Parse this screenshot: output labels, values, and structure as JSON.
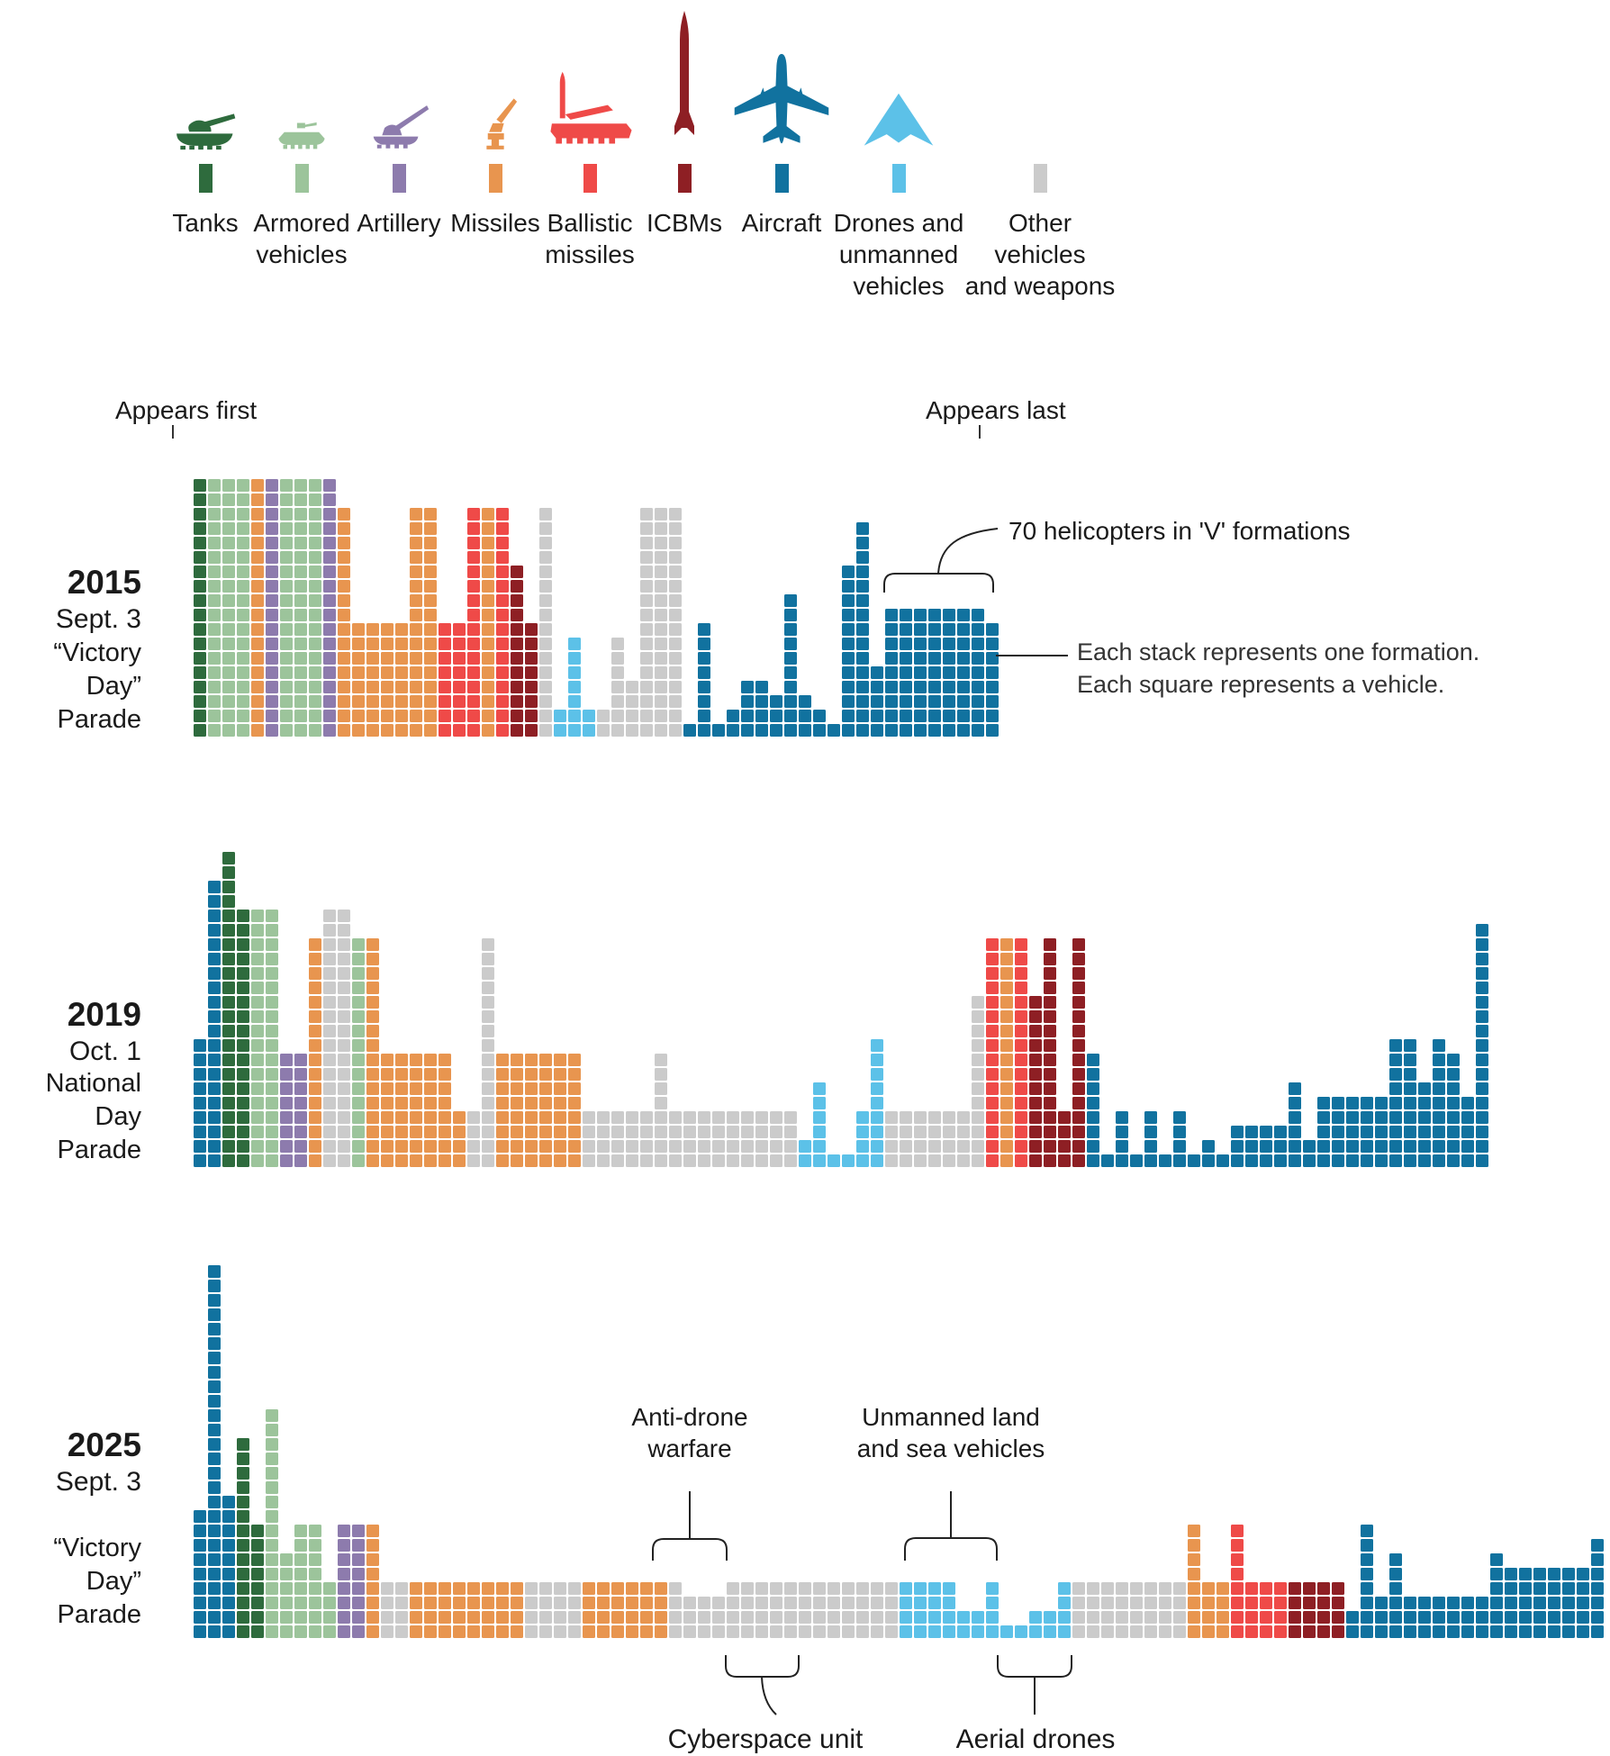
{
  "colors": {
    "dg": "#2e6b3d",
    "lg": "#9cc49b",
    "pu": "#8d7bad",
    "or": "#e8954f",
    "re": "#ef4a48",
    "dr": "#8e1f24",
    "bl": "#11729f",
    "lb": "#5cc1e8",
    "gy": "#cbcbcb"
  },
  "legend": {
    "items": [
      {
        "label": "Tanks",
        "color_key": "dg",
        "icon": "tank-icon"
      },
      {
        "label": "Armored\nvehicles",
        "color_key": "lg",
        "icon": "armored-vehicle-icon"
      },
      {
        "label": "Artillery",
        "color_key": "pu",
        "icon": "artillery-icon"
      },
      {
        "label": "Missiles",
        "color_key": "or",
        "icon": "missile-launcher-icon"
      },
      {
        "label": "Ballistic\nmissiles",
        "color_key": "re",
        "icon": "ballistic-missile-icon"
      },
      {
        "label": "ICBMs",
        "color_key": "dr",
        "icon": "icbm-icon"
      },
      {
        "label": "Aircraft",
        "color_key": "bl",
        "icon": "aircraft-icon"
      },
      {
        "label": "Drones and\nunmanned\nvehicles",
        "color_key": "lb",
        "icon": "drone-icon"
      },
      {
        "label": "Other vehicles\nand weapons",
        "color_key": "gy",
        "icon": "square-swatch-icon"
      }
    ]
  },
  "annotations": {
    "appears_first": "Appears first",
    "appears_last": "Appears last",
    "helicopters": "70 helicopters in 'V' formations",
    "stack_note_line1": "Each stack represents one formation.",
    "stack_note_line2": "Each square represents a vehicle.",
    "anti_drone": "Anti-drone\nwarfare",
    "unmanned": "Unmanned land\nand sea vehicles",
    "cyberspace": "Cyberspace unit",
    "aerial": "Aerial drones"
  },
  "chart_data": {
    "type": "waffle",
    "unit_note": "Each stack represents one formation. Each square represents a vehicle.",
    "order_note": "Stacks ordered left to right from first to last appearance in parade",
    "parades": [
      {
        "year": "2015",
        "date": "Sept. 3",
        "event_line1": "“Victory Day”",
        "event_line2": "Parade",
        "rows": 18,
        "stacks": [
          [
            "dg",
            18
          ],
          [
            "lg",
            18
          ],
          [
            "lg",
            18
          ],
          [
            "lg",
            18
          ],
          [
            "or",
            18
          ],
          [
            "pu",
            18
          ],
          [
            "lg",
            18
          ],
          [
            "lg",
            18
          ],
          [
            "lg",
            18
          ],
          [
            "pu",
            18
          ],
          [
            "or",
            16
          ],
          [
            "or",
            8
          ],
          [
            "or",
            8
          ],
          [
            "or",
            8
          ],
          [
            "or",
            8
          ],
          [
            "or",
            16
          ],
          [
            "or",
            16
          ],
          [
            "re",
            8
          ],
          [
            "re",
            8
          ],
          [
            "re",
            16
          ],
          [
            "or",
            16
          ],
          [
            "re",
            16
          ],
          [
            "dr",
            12
          ],
          [
            "dr",
            8
          ],
          [
            "gy",
            16
          ],
          [
            "lb",
            2
          ],
          [
            "lb",
            7
          ],
          [
            "lb",
            2
          ],
          [
            "gy",
            2
          ],
          [
            "gy",
            7
          ],
          [
            "gy",
            4
          ],
          [
            "gy",
            16
          ],
          [
            "gy",
            16
          ],
          [
            "gy",
            16
          ],
          [
            "bl",
            1
          ],
          [
            "bl",
            8
          ],
          [
            "bl",
            1
          ],
          [
            "bl",
            2
          ],
          [
            "bl",
            4
          ],
          [
            "bl",
            4
          ],
          [
            "bl",
            3
          ],
          [
            "bl",
            10
          ],
          [
            "bl",
            3
          ],
          [
            "bl",
            2
          ],
          [
            "bl",
            1
          ],
          [
            "bl",
            12
          ],
          [
            "bl",
            15
          ],
          [
            "bl",
            5
          ],
          [
            "bl",
            9
          ],
          [
            "bl",
            9
          ],
          [
            "bl",
            9
          ],
          [
            "bl",
            9
          ],
          [
            "bl",
            9
          ],
          [
            "bl",
            9
          ],
          [
            "bl",
            9
          ],
          [
            "bl",
            8
          ]
        ]
      },
      {
        "year": "2019",
        "date": "Oct. 1",
        "event_line1": "National Day",
        "event_line2": "Parade",
        "rows": 22,
        "stacks": [
          [
            "bl",
            9
          ],
          [
            "bl",
            20
          ],
          [
            "dg",
            22
          ],
          [
            "dg",
            18
          ],
          [
            "lg",
            18
          ],
          [
            "lg",
            18
          ],
          [
            "pu",
            8
          ],
          [
            "pu",
            8
          ],
          [
            "or",
            16
          ],
          [
            "gy",
            18
          ],
          [
            "gy",
            18
          ],
          [
            "lg",
            16
          ],
          [
            "or",
            16
          ],
          [
            "or",
            8
          ],
          [
            "or",
            8
          ],
          [
            "or",
            8
          ],
          [
            "or",
            8
          ],
          [
            "or",
            8
          ],
          [
            "or",
            4
          ],
          [
            "gy",
            4
          ],
          [
            "gy",
            16
          ],
          [
            "or",
            8
          ],
          [
            "or",
            8
          ],
          [
            "or",
            8
          ],
          [
            "or",
            8
          ],
          [
            "or",
            8
          ],
          [
            "or",
            8
          ],
          [
            "gy",
            4
          ],
          [
            "gy",
            4
          ],
          [
            "gy",
            4
          ],
          [
            "gy",
            4
          ],
          [
            "gy",
            4
          ],
          [
            "gy",
            8
          ],
          [
            "gy",
            4
          ],
          [
            "gy",
            4
          ],
          [
            "gy",
            4
          ],
          [
            "gy",
            4
          ],
          [
            "gy",
            4
          ],
          [
            "gy",
            4
          ],
          [
            "gy",
            4
          ],
          [
            "gy",
            4
          ],
          [
            "gy",
            4
          ],
          [
            "lb",
            2
          ],
          [
            "lb",
            6
          ],
          [
            "lb",
            1
          ],
          [
            "lb",
            1
          ],
          [
            "lb",
            4
          ],
          [
            "lb",
            9
          ],
          [
            "gy",
            4
          ],
          [
            "gy",
            4
          ],
          [
            "gy",
            4
          ],
          [
            "gy",
            4
          ],
          [
            "gy",
            4
          ],
          [
            "gy",
            4
          ],
          [
            "gy",
            12
          ],
          [
            "re",
            16
          ],
          [
            "or",
            16
          ],
          [
            "re",
            16
          ],
          [
            "dr",
            12
          ],
          [
            "dr",
            16
          ],
          [
            "dr",
            4
          ],
          [
            "dr",
            16
          ],
          [
            "bl",
            8
          ],
          [
            "bl",
            1
          ],
          [
            "bl",
            4
          ],
          [
            "bl",
            1
          ],
          [
            "bl",
            4
          ],
          [
            "bl",
            1
          ],
          [
            "bl",
            4
          ],
          [
            "bl",
            1
          ],
          [
            "bl",
            2
          ],
          [
            "bl",
            1
          ],
          [
            "bl",
            3
          ],
          [
            "bl",
            3
          ],
          [
            "bl",
            3
          ],
          [
            "bl",
            3
          ],
          [
            "bl",
            6
          ],
          [
            "bl",
            2
          ],
          [
            "bl",
            5
          ],
          [
            "bl",
            5
          ],
          [
            "bl",
            5
          ],
          [
            "bl",
            5
          ],
          [
            "bl",
            5
          ],
          [
            "bl",
            9
          ],
          [
            "bl",
            9
          ],
          [
            "bl",
            6
          ],
          [
            "bl",
            9
          ],
          [
            "bl",
            8
          ],
          [
            "bl",
            5
          ],
          [
            "bl",
            17
          ]
        ]
      },
      {
        "year": "2025",
        "date": "Sept. 3",
        "event_line1": "“Victory Day”",
        "event_line2": "Parade",
        "rows": 26,
        "stacks": [
          [
            "bl",
            9
          ],
          [
            "bl",
            26
          ],
          [
            "bl",
            10
          ],
          [
            "dg",
            14
          ],
          [
            "dg",
            8
          ],
          [
            "lg",
            16
          ],
          [
            "lg",
            6
          ],
          [
            "lg",
            8
          ],
          [
            "lg",
            8
          ],
          [
            "lg",
            4
          ],
          [
            "pu",
            8
          ],
          [
            "pu",
            8
          ],
          [
            "or",
            8
          ],
          [
            "gy",
            4
          ],
          [
            "gy",
            4
          ],
          [
            "or",
            4
          ],
          [
            "or",
            4
          ],
          [
            "or",
            4
          ],
          [
            "or",
            4
          ],
          [
            "or",
            4
          ],
          [
            "or",
            4
          ],
          [
            "or",
            4
          ],
          [
            "or",
            4
          ],
          [
            "gy",
            4
          ],
          [
            "gy",
            4
          ],
          [
            "gy",
            4
          ],
          [
            "gy",
            4
          ],
          [
            "or",
            4
          ],
          [
            "or",
            4
          ],
          [
            "or",
            4
          ],
          [
            "or",
            4
          ],
          [
            "or",
            4
          ],
          [
            "or",
            4
          ],
          [
            "gy",
            4
          ],
          [
            "gy",
            3
          ],
          [
            "gy",
            3
          ],
          [
            "gy",
            3
          ],
          [
            "gy",
            4
          ],
          [
            "gy",
            4
          ],
          [
            "gy",
            4
          ],
          [
            "gy",
            4
          ],
          [
            "gy",
            4
          ],
          [
            "gy",
            4
          ],
          [
            "gy",
            4
          ],
          [
            "gy",
            4
          ],
          [
            "gy",
            4
          ],
          [
            "gy",
            4
          ],
          [
            "gy",
            4
          ],
          [
            "gy",
            4
          ],
          [
            "lb",
            4
          ],
          [
            "lb",
            4
          ],
          [
            "lb",
            4
          ],
          [
            "lb",
            4
          ],
          [
            "lb",
            2
          ],
          [
            "lb",
            2
          ],
          [
            "lb",
            4
          ],
          [
            "lb",
            1
          ],
          [
            "lb",
            1
          ],
          [
            "lb",
            2
          ],
          [
            "lb",
            2
          ],
          [
            "lb",
            4
          ],
          [
            "gy",
            4
          ],
          [
            "gy",
            4
          ],
          [
            "gy",
            4
          ],
          [
            "gy",
            4
          ],
          [
            "gy",
            4
          ],
          [
            "gy",
            4
          ],
          [
            "gy",
            4
          ],
          [
            "gy",
            4
          ],
          [
            "or",
            8
          ],
          [
            "or",
            4
          ],
          [
            "or",
            4
          ],
          [
            "re",
            8
          ],
          [
            "re",
            4
          ],
          [
            "re",
            4
          ],
          [
            "re",
            4
          ],
          [
            "dr",
            4
          ],
          [
            "dr",
            4
          ],
          [
            "dr",
            4
          ],
          [
            "dr",
            4
          ],
          [
            "bl",
            2
          ],
          [
            "bl",
            8
          ],
          [
            "bl",
            3
          ],
          [
            "bl",
            6
          ],
          [
            "bl",
            3
          ],
          [
            "bl",
            3
          ],
          [
            "bl",
            3
          ],
          [
            "bl",
            3
          ],
          [
            "bl",
            3
          ],
          [
            "bl",
            3
          ],
          [
            "bl",
            6
          ],
          [
            "bl",
            5
          ],
          [
            "bl",
            5
          ],
          [
            "bl",
            5
          ],
          [
            "bl",
            5
          ],
          [
            "bl",
            5
          ],
          [
            "bl",
            5
          ],
          [
            "bl",
            7
          ]
        ]
      }
    ]
  }
}
